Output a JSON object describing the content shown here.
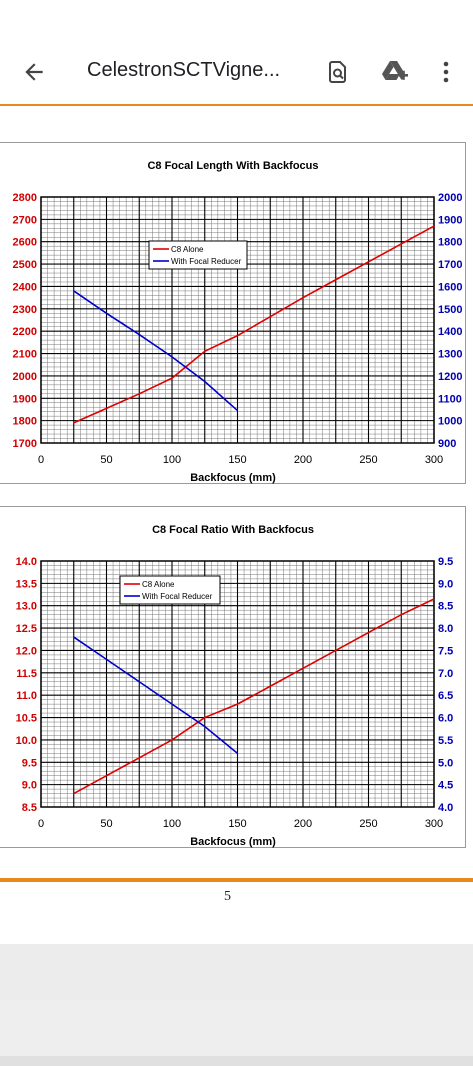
{
  "app_bar": {
    "back_icon": "arrow-back-icon",
    "title": "CelestronSCTVigne...",
    "find_icon": "find-in-page-icon",
    "drive_icon": "add-to-drive-icon",
    "more_icon": "more-vert-icon"
  },
  "page": {
    "number": "5"
  },
  "colors": {
    "c8": "#e00000",
    "reducer": "#0000cc",
    "left_axis": "#d00000",
    "right_axis": "#0000b0",
    "accent": "#e8891d"
  },
  "chart_data": [
    {
      "type": "line",
      "title": "C8 Focal Length With Backfocus",
      "xlabel": "Backfocus (mm)",
      "xlim": [
        0,
        300
      ],
      "xticks": [
        "0",
        "50",
        "100",
        "150",
        "200",
        "250",
        "300"
      ],
      "ylim_left": [
        1700,
        2800
      ],
      "yticks_left": [
        "1700",
        "1800",
        "1900",
        "2000",
        "2100",
        "2200",
        "2300",
        "2400",
        "2500",
        "2600",
        "2700",
        "2800"
      ],
      "ylim_right": [
        900,
        2000
      ],
      "yticks_right": [
        "900",
        "1000",
        "1100",
        "1200",
        "1300",
        "1400",
        "1500",
        "1600",
        "1700",
        "1800",
        "1900",
        "2000"
      ],
      "grid": true,
      "legend": "top-center",
      "series": [
        {
          "name": "C8 Alone",
          "axis": "left",
          "color": "#e00000",
          "x": [
            25,
            50,
            75,
            100,
            125,
            150,
            175,
            200,
            225,
            250,
            275,
            300
          ],
          "y": [
            1790,
            1855,
            1920,
            1990,
            2110,
            2180,
            2265,
            2350,
            2430,
            2510,
            2590,
            2670
          ]
        },
        {
          "name": "With Focal Reducer",
          "axis": "right",
          "color": "#0000cc",
          "x": [
            25,
            50,
            75,
            100,
            125,
            150
          ],
          "y": [
            1580,
            1480,
            1385,
            1285,
            1175,
            1045
          ]
        }
      ]
    },
    {
      "type": "line",
      "title": "C8 Focal Ratio With Backfocus",
      "xlabel": "Backfocus (mm)",
      "xlim": [
        0,
        300
      ],
      "xticks": [
        "0",
        "50",
        "100",
        "150",
        "200",
        "250",
        "300"
      ],
      "ylim_left": [
        8.5,
        14.0
      ],
      "yticks_left": [
        "8.5",
        "9.0",
        "9.5",
        "10.0",
        "10.5",
        "11.0",
        "11.5",
        "12.0",
        "12.5",
        "13.0",
        "13.5",
        "14.0"
      ],
      "ylim_right": [
        4.0,
        9.5
      ],
      "yticks_right": [
        "4.0",
        "4.5",
        "5.0",
        "5.5",
        "6.0",
        "6.5",
        "7.0",
        "7.5",
        "8.0",
        "8.5",
        "9.0",
        "9.5"
      ],
      "grid": true,
      "legend": "top-center",
      "series": [
        {
          "name": "C8 Alone",
          "axis": "left",
          "color": "#e00000",
          "x": [
            25,
            50,
            75,
            100,
            125,
            150,
            175,
            200,
            225,
            250,
            275,
            300
          ],
          "y": [
            8.8,
            9.2,
            9.6,
            10.0,
            10.5,
            10.8,
            11.2,
            11.6,
            12.0,
            12.4,
            12.8,
            13.15
          ]
        },
        {
          "name": "With Focal Reducer",
          "axis": "right",
          "color": "#0000cc",
          "x": [
            25,
            50,
            75,
            100,
            125,
            150
          ],
          "y": [
            7.8,
            7.3,
            6.8,
            6.3,
            5.8,
            5.2
          ]
        }
      ]
    }
  ]
}
